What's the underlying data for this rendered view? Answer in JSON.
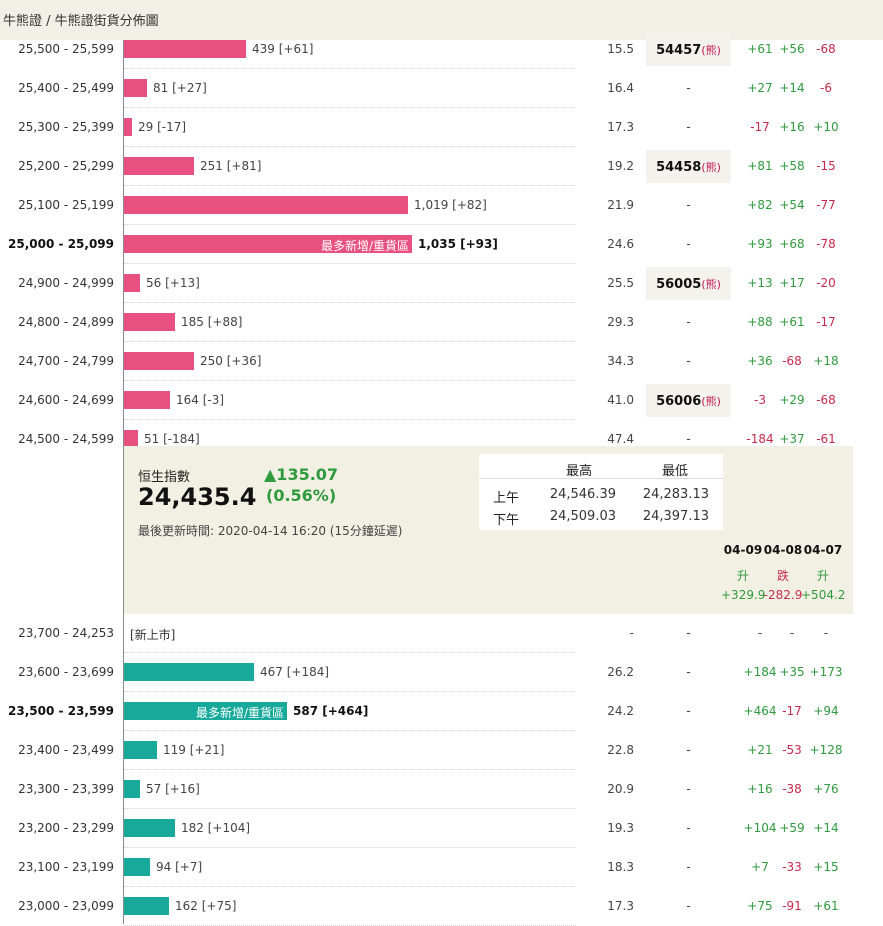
{
  "breadcrumb": {
    "root": "牛熊證",
    "separator": " / ",
    "current": "牛熊證街貨分佈圖"
  },
  "colors": {
    "bull_bar": "#e8517f",
    "bear_bar": "#17a99a",
    "up": "#2f9a3e",
    "down": "#c8294a",
    "panel_bg": "#f2efe3"
  },
  "zone_label": "最多新增/重貨區",
  "bull_rows": [
    {
      "range": "25,500 - 25,599",
      "count": "439 [+61]",
      "count_value": 439,
      "pct": "15.5",
      "code": "54457",
      "code_tag": "(熊)",
      "d1": "+61",
      "d2": "+56",
      "d3": "-68"
    },
    {
      "range": "25,400 - 25,499",
      "count": "81 [+27]",
      "count_value": 81,
      "pct": "16.4",
      "code": "-",
      "code_tag": "",
      "d1": "+27",
      "d2": "+14",
      "d3": "-6"
    },
    {
      "range": "25,300 - 25,399",
      "count": "29 [-17]",
      "count_value": 29,
      "pct": "17.3",
      "code": "-",
      "code_tag": "",
      "d1": "-17",
      "d2": "+16",
      "d3": "+10"
    },
    {
      "range": "25,200 - 25,299",
      "count": "251 [+81]",
      "count_value": 251,
      "pct": "19.2",
      "code": "54458",
      "code_tag": "(熊)",
      "d1": "+81",
      "d2": "+58",
      "d3": "-15"
    },
    {
      "range": "25,100 - 25,199",
      "count": "1,019 [+82]",
      "count_value": 1019,
      "pct": "21.9",
      "code": "-",
      "code_tag": "",
      "d1": "+82",
      "d2": "+54",
      "d3": "-77"
    },
    {
      "range": "25,000 - 25,099",
      "count": "1,035 [+93]",
      "count_value": 1035,
      "pct": "24.6",
      "code": "-",
      "code_tag": "",
      "d1": "+93",
      "d2": "+68",
      "d3": "-78",
      "highlight": true
    },
    {
      "range": "24,900 - 24,999",
      "count": "56 [+13]",
      "count_value": 56,
      "pct": "25.5",
      "code": "56005",
      "code_tag": "(熊)",
      "d1": "+13",
      "d2": "+17",
      "d3": "-20"
    },
    {
      "range": "24,800 - 24,899",
      "count": "185 [+88]",
      "count_value": 185,
      "pct": "29.3",
      "code": "-",
      "code_tag": "",
      "d1": "+88",
      "d2": "+61",
      "d3": "-17"
    },
    {
      "range": "24,700 - 24,799",
      "count": "250 [+36]",
      "count_value": 250,
      "pct": "34.3",
      "code": "-",
      "code_tag": "",
      "d1": "+36",
      "d2": "-68",
      "d3": "+18"
    },
    {
      "range": "24,600 - 24,699",
      "count": "164 [-3]",
      "count_value": 164,
      "pct": "41.0",
      "code": "56006",
      "code_tag": "(熊)",
      "d1": "-3",
      "d2": "+29",
      "d3": "-68"
    },
    {
      "range": "24,500 - 24,599",
      "count": "51 [-184]",
      "count_value": 51,
      "pct": "47.4",
      "code": "-",
      "code_tag": "",
      "d1": "-184",
      "d2": "+37",
      "d3": "-61"
    }
  ],
  "index": {
    "name": "恒生指數",
    "value": "24,435.4",
    "change": "▲135.07",
    "change_pct": "(0.56%)",
    "updated": "最後更新時間: 2020-04-14 16:20 (15分鐘延遲)",
    "table": {
      "col_high": "最高",
      "col_low": "最低",
      "rows": [
        {
          "label": "上午",
          "high": "24,546.39",
          "low": "24,283.13"
        },
        {
          "label": "下午",
          "high": "24,509.03",
          "low": "24,397.13"
        }
      ]
    },
    "days": [
      {
        "date": "04-09",
        "dir": "升",
        "change": "+329.9"
      },
      {
        "date": "04-08",
        "dir": "跌",
        "change": "-282.9"
      },
      {
        "date": "04-07",
        "dir": "升",
        "change": "+504.2"
      }
    ]
  },
  "bear_rows": [
    {
      "range": "23,700 - 24,253",
      "count": "[新上市]",
      "count_value": 0,
      "pct": "-",
      "code": "-",
      "code_tag": "",
      "d1": "-",
      "d2": "-",
      "d3": "-",
      "newlist": true
    },
    {
      "range": "23,600 - 23,699",
      "count": "467 [+184]",
      "count_value": 467,
      "pct": "26.2",
      "code": "-",
      "code_tag": "",
      "d1": "+184",
      "d2": "+35",
      "d3": "+173"
    },
    {
      "range": "23,500 - 23,599",
      "count": "587 [+464]",
      "count_value": 587,
      "pct": "24.2",
      "code": "-",
      "code_tag": "",
      "d1": "+464",
      "d2": "-17",
      "d3": "+94",
      "highlight": true
    },
    {
      "range": "23,400 - 23,499",
      "count": "119 [+21]",
      "count_value": 119,
      "pct": "22.8",
      "code": "-",
      "code_tag": "",
      "d1": "+21",
      "d2": "-53",
      "d3": "+128"
    },
    {
      "range": "23,300 - 23,399",
      "count": "57 [+16]",
      "count_value": 57,
      "pct": "20.9",
      "code": "-",
      "code_tag": "",
      "d1": "+16",
      "d2": "-38",
      "d3": "+76"
    },
    {
      "range": "23,200 - 23,299",
      "count": "182 [+104]",
      "count_value": 182,
      "pct": "19.3",
      "code": "-",
      "code_tag": "",
      "d1": "+104",
      "d2": "+59",
      "d3": "+14"
    },
    {
      "range": "23,100 - 23,199",
      "count": "94 [+7]",
      "count_value": 94,
      "pct": "18.3",
      "code": "-",
      "code_tag": "",
      "d1": "+7",
      "d2": "-33",
      "d3": "+15"
    },
    {
      "range": "23,000 - 23,099",
      "count": "162 [+75]",
      "count_value": 162,
      "pct": "17.3",
      "code": "-",
      "code_tag": "",
      "d1": "+75",
      "d2": "-91",
      "d3": "+61"
    }
  ]
}
